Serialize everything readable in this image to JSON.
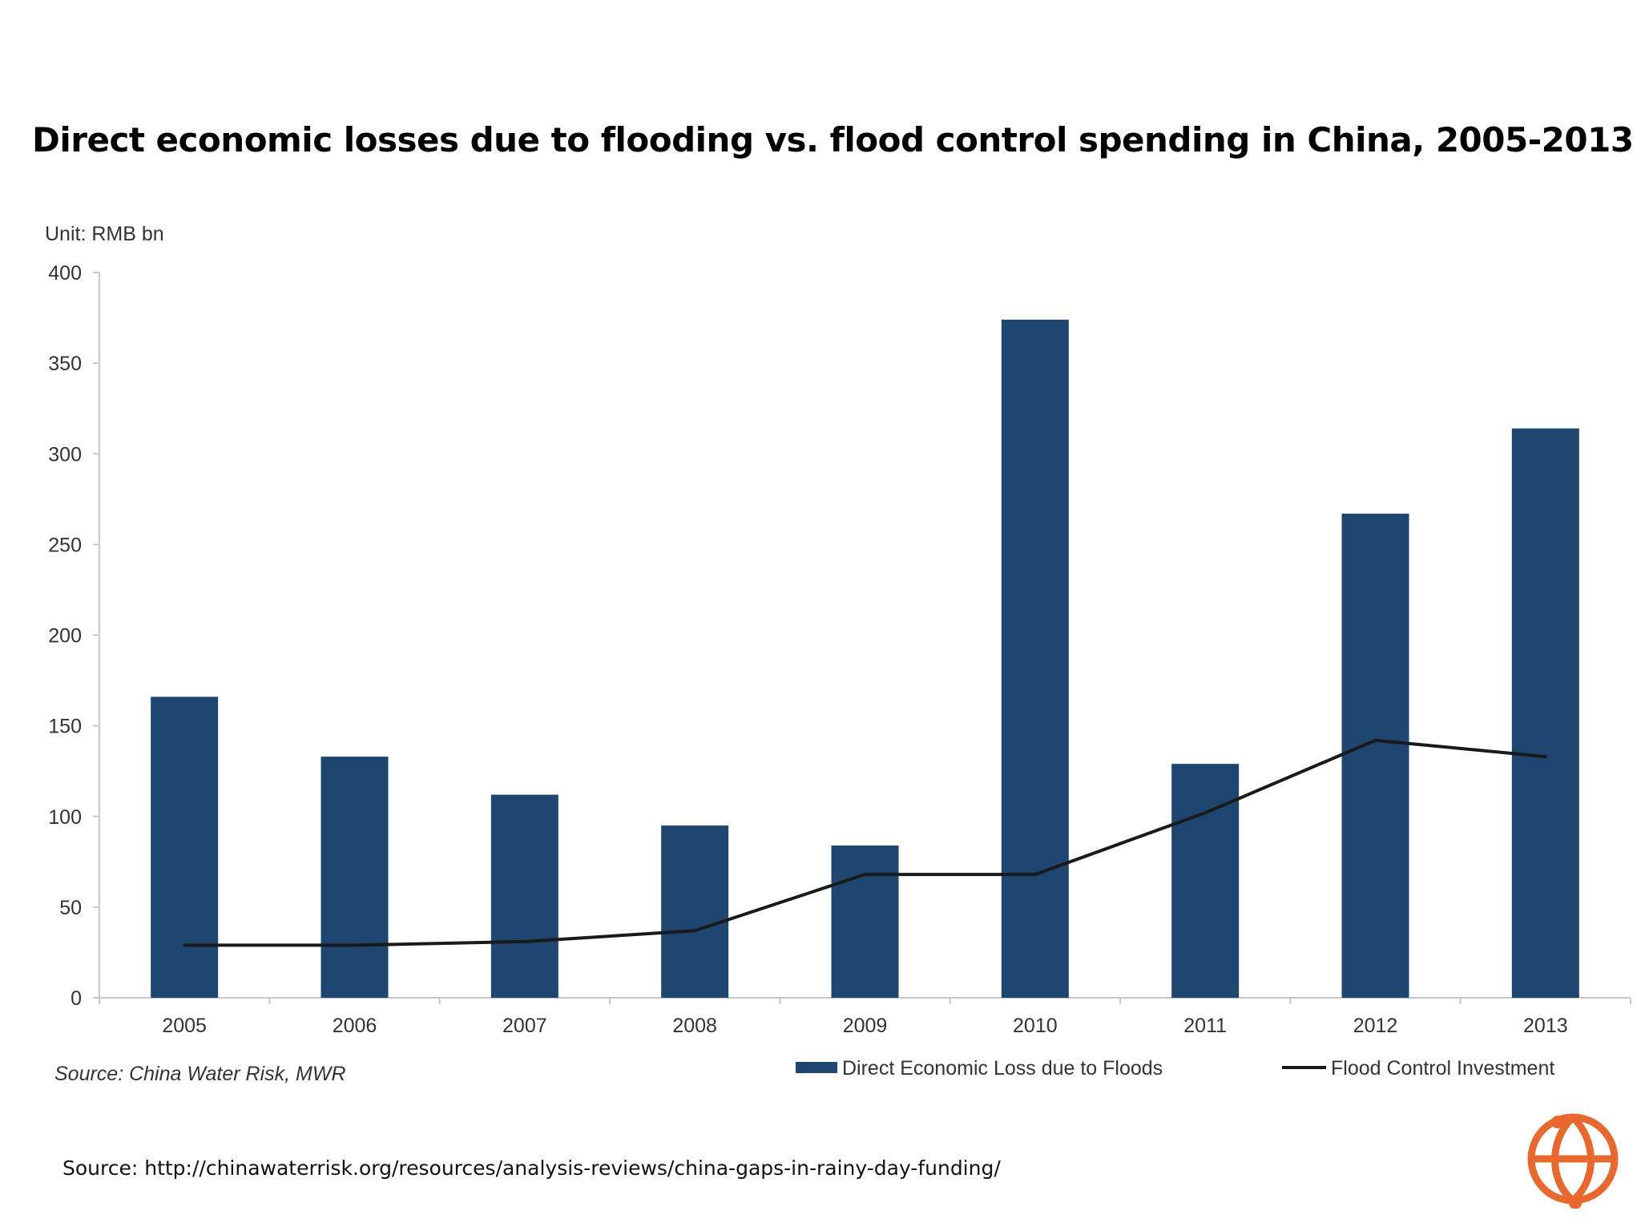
{
  "slide": {
    "title": "Direct economic losses due to flooding vs. flood control spending in China, 2005-2013",
    "source_link": "Source: http://chinawaterrisk.org/resources/analysis-reviews/china-gaps-in-rainy-day-funding/",
    "logo_icon": "globe-logo-icon"
  },
  "colors": {
    "bar": "#1f4571",
    "line": "#1a1a1a",
    "axis": "#c8c8c8",
    "logo": "#e8692f"
  },
  "chart_data": {
    "type": "bar",
    "unit_label": "Unit: RMB bn",
    "source_note": "Source: China Water Risk, MWR",
    "categories": [
      "2005",
      "2006",
      "2007",
      "2008",
      "2009",
      "2010",
      "2011",
      "2012",
      "2013"
    ],
    "series": [
      {
        "name": "Direct Economic Loss due to Floods",
        "type": "bar",
        "values": [
          166,
          133,
          112,
          95,
          84,
          374,
          129,
          267,
          314
        ]
      },
      {
        "name": "Flood Control Investment",
        "type": "line",
        "values": [
          29,
          29,
          31,
          37,
          68,
          68,
          102,
          142,
          133
        ]
      }
    ],
    "yticks": [
      "0",
      "50",
      "100",
      "150",
      "200",
      "250",
      "300",
      "350",
      "400"
    ],
    "ylim": [
      0,
      400
    ],
    "grid": false,
    "legend": "bottom-right"
  }
}
